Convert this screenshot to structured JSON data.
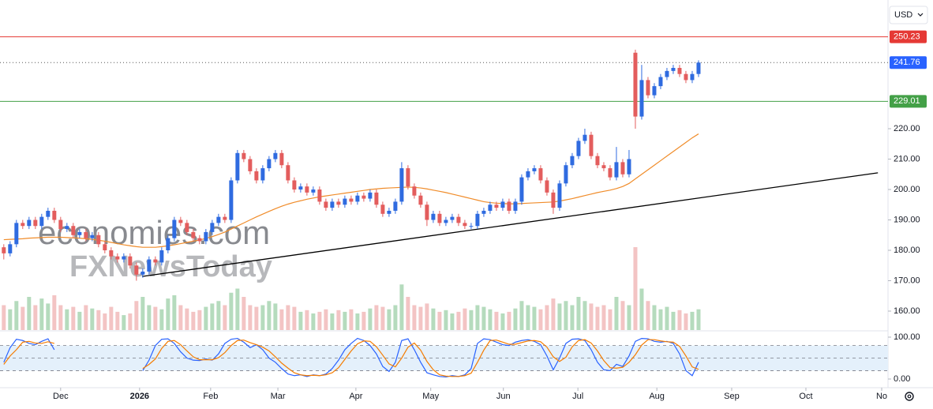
{
  "currency": "USD",
  "chart_data": {
    "type": "candlestick",
    "watermark": [
      "economies.com",
      "FXNewsToday"
    ],
    "xlim": [
      -0.6,
      140
    ],
    "xticks": [
      {
        "value": 9,
        "label": "Dec"
      },
      {
        "value": 21.5,
        "label": "2026"
      },
      {
        "value": 32.75,
        "label": "Feb"
      },
      {
        "value": 43.4,
        "label": "Mar"
      },
      {
        "value": 55.75,
        "label": "Apr"
      },
      {
        "value": 67.6,
        "label": "May"
      },
      {
        "value": 79.1,
        "label": "Jun"
      },
      {
        "value": 90.9,
        "label": "Jul"
      },
      {
        "value": 103.4,
        "label": "Aug"
      },
      {
        "value": 115.25,
        "label": "Sep"
      },
      {
        "value": 127,
        "label": "Oct"
      },
      {
        "value": 139,
        "label": "No"
      }
    ],
    "ylim": [
      153.77,
      262.34
    ],
    "yticks": [
      {
        "value": 160,
        "label": "160.00"
      },
      {
        "value": 170,
        "label": "170.00"
      },
      {
        "value": 180,
        "label": "180.00"
      },
      {
        "value": 190,
        "label": "190.00"
      },
      {
        "value": 200,
        "label": "200.00"
      },
      {
        "value": 210,
        "label": "210.00"
      },
      {
        "value": 220,
        "label": "220.00"
      }
    ],
    "up_color": "#2f6be0",
    "down_color": "#e35d5d",
    "open": [
      181,
      179,
      182,
      189,
      188,
      190,
      188,
      191,
      193,
      190,
      187,
      188,
      185,
      186,
      184,
      185,
      182,
      180,
      178,
      177,
      178,
      175,
      172,
      173,
      177,
      176,
      180,
      184,
      190,
      189,
      186,
      184,
      183,
      186,
      189,
      191,
      190,
      203,
      212,
      210,
      206,
      203,
      207,
      210,
      212,
      208,
      203,
      200,
      201,
      199,
      200,
      196,
      194,
      196,
      195,
      197,
      196,
      198,
      197,
      199,
      195,
      192,
      193,
      196,
      207,
      201,
      198,
      195,
      190,
      192,
      189,
      190,
      191,
      189,
      188,
      188,
      192,
      193,
      195,
      194,
      196,
      193,
      196,
      204,
      206,
      207,
      203,
      199,
      194,
      202,
      208,
      211,
      216,
      218,
      211,
      208,
      207,
      204,
      209,
      205,
      245,
      224,
      236,
      231,
      234,
      237,
      239,
      240,
      238,
      236,
      238
    ],
    "high": [
      182,
      183,
      190,
      190,
      191,
      191,
      192,
      194,
      194,
      191,
      189,
      189,
      187,
      187,
      186,
      186,
      183,
      181,
      179,
      179,
      179,
      176,
      174,
      178,
      178,
      181,
      185,
      191,
      191,
      190,
      187,
      185,
      187,
      190,
      192,
      192,
      204,
      213,
      213,
      211,
      207,
      208,
      211,
      213,
      213,
      209,
      204,
      202,
      202,
      201,
      201,
      197,
      197,
      197,
      198,
      198,
      199,
      199,
      200,
      200,
      196,
      194,
      197,
      209,
      208,
      202,
      199,
      196,
      193,
      193,
      191,
      192,
      192,
      190,
      189,
      193,
      194,
      196,
      196,
      197,
      197,
      197,
      205,
      207,
      208,
      208,
      204,
      200,
      203,
      209,
      212,
      217,
      220,
      219,
      212,
      209,
      208,
      214,
      210,
      213,
      246,
      241,
      237,
      235,
      238,
      240,
      241,
      241,
      239,
      239,
      242.5
    ],
    "low": [
      177,
      178,
      181,
      187,
      187,
      187,
      187,
      190,
      189,
      186,
      186,
      184,
      184,
      183,
      183,
      181,
      179,
      177,
      176,
      176,
      174,
      170,
      171,
      172,
      175,
      175,
      179,
      183,
      188,
      185,
      183,
      182,
      182,
      185,
      188,
      189,
      189,
      202,
      209,
      205,
      202,
      202,
      206,
      209,
      207,
      202,
      199,
      199,
      198,
      198,
      195,
      193,
      193,
      194,
      194,
      195,
      195,
      196,
      196,
      194,
      191,
      191,
      192,
      195,
      200,
      197,
      194,
      188,
      189,
      188,
      188,
      189,
      188,
      187,
      187,
      187,
      191,
      192,
      193,
      193,
      192,
      192,
      195,
      203,
      205,
      202,
      198,
      192,
      193,
      201,
      207,
      210,
      215,
      210,
      207,
      206,
      203,
      203,
      204,
      204,
      220,
      223,
      230,
      230,
      233,
      236,
      238,
      237,
      235,
      235,
      237
    ],
    "close": [
      179,
      182,
      189,
      188,
      190,
      188,
      191,
      193,
      190,
      187,
      188,
      185,
      186,
      184,
      185,
      182,
      180,
      178,
      177,
      178,
      175,
      172,
      173,
      177,
      176,
      180,
      184,
      190,
      189,
      186,
      184,
      183,
      186,
      189,
      191,
      190,
      203,
      212,
      210,
      206,
      203,
      207,
      210,
      212,
      208,
      203,
      200,
      201,
      199,
      200,
      196,
      194,
      196,
      195,
      197,
      196,
      198,
      197,
      199,
      195,
      192,
      193,
      196,
      207,
      201,
      198,
      195,
      190,
      192,
      189,
      190,
      191,
      189,
      188,
      188,
      192,
      193,
      195,
      194,
      196,
      193,
      196,
      204,
      206,
      207,
      203,
      199,
      194,
      202,
      208,
      211,
      216,
      218,
      211,
      208,
      207,
      204,
      209,
      205,
      210,
      224,
      236,
      231,
      234,
      237,
      239,
      240,
      238,
      236,
      238,
      241.76
    ],
    "volume_colors": {
      "up": "#b5dbbd",
      "down": "#f3c4c4"
    },
    "volume": [
      30,
      25,
      35,
      28,
      40,
      30,
      38,
      32,
      42,
      30,
      25,
      28,
      22,
      30,
      26,
      24,
      20,
      28,
      22,
      18,
      20,
      35,
      40,
      30,
      28,
      25,
      38,
      42,
      30,
      26,
      22,
      24,
      28,
      32,
      35,
      30,
      45,
      50,
      40,
      30,
      28,
      30,
      35,
      32,
      25,
      30,
      28,
      22,
      24,
      20,
      22,
      25,
      20,
      24,
      22,
      25,
      20,
      22,
      26,
      30,
      28,
      25,
      30,
      55,
      40,
      30,
      28,
      32,
      26,
      22,
      24,
      20,
      22,
      26,
      24,
      30,
      28,
      25,
      22,
      20,
      22,
      26,
      35,
      30,
      28,
      25,
      30,
      38,
      32,
      35,
      30,
      40,
      35,
      32,
      28,
      30,
      25,
      40,
      35,
      30,
      100,
      50,
      35,
      30,
      25,
      28,
      22,
      24,
      20,
      22,
      25
    ],
    "moving_average": {
      "color": "#f08c2a",
      "values": [
        183.5,
        183.6,
        183.7,
        183.8,
        184,
        184.1,
        184.2,
        184.3,
        184.3,
        184.3,
        184.2,
        184.1,
        184,
        183.8,
        183.6,
        183.3,
        183,
        182.6,
        182.2,
        181.8,
        181.5,
        181.2,
        181,
        181,
        181,
        181.2,
        181.5,
        181.8,
        182.2,
        182.6,
        183,
        183.4,
        183.9,
        184.5,
        185.2,
        186,
        187,
        188,
        189,
        190,
        191,
        191.9,
        192.8,
        193.7,
        194.5,
        195.2,
        195.8,
        196.3,
        196.8,
        197.2,
        197.6,
        197.9,
        198.2,
        198.5,
        198.8,
        199.1,
        199.4,
        199.7,
        200,
        200.2,
        200.4,
        200.5,
        200.6,
        200.7,
        200.8,
        200.7,
        200.5,
        200.2,
        199.8,
        199.4,
        199,
        198.5,
        198,
        197.5,
        197,
        196.5,
        196,
        195.7,
        195.5,
        195.4,
        195.3,
        195.3,
        195.4,
        195.5,
        195.6,
        195.7,
        195.8,
        195.9,
        196.2,
        196.6,
        197,
        197.5,
        198,
        198.5,
        199,
        199.4,
        199.8,
        200.3,
        201,
        202,
        203.5,
        205,
        206.5,
        208,
        209.5,
        211,
        212.5,
        214,
        215.5,
        217,
        218.3
      ]
    },
    "trendline": {
      "color": "#000000",
      "x": [
        21.9,
        138.4
      ],
      "y": [
        171.4,
        205.5
      ]
    },
    "levels": [
      {
        "value": 250.23,
        "color": "#e53935",
        "style": "solid"
      },
      {
        "value": 241.76,
        "color": "#2962ff",
        "style": "dotted"
      },
      {
        "value": 229.01,
        "color": "#43a047",
        "style": "solid"
      }
    ],
    "oscillator": {
      "ylim": [
        -22.6,
        113.2
      ],
      "yticks": [
        {
          "value": 100,
          "label": "100.00"
        },
        {
          "value": 0,
          "label": "0.00"
        }
      ],
      "levels": [
        80,
        50,
        20
      ],
      "band_color": "#e4f0fb",
      "series": [
        {
          "color": "#2962ff",
          "values": [
            40,
            75,
            95,
            92,
            85,
            82,
            90,
            96,
            70,
            null,
            null,
            null,
            null,
            null,
            null,
            null,
            null,
            null,
            null,
            null,
            null,
            null,
            20,
            45,
            80,
            95,
            96,
            85,
            65,
            50,
            45,
            44,
            48,
            45,
            60,
            85,
            95,
            97,
            88,
            75,
            82,
            70,
            50,
            40,
            25,
            12,
            8,
            10,
            6,
            10,
            8,
            12,
            25,
            45,
            70,
            85,
            97,
            92,
            80,
            60,
            30,
            18,
            40,
            92,
            96,
            70,
            40,
            15,
            10,
            6,
            5,
            8,
            6,
            10,
            25,
            85,
            96,
            94,
            88,
            82,
            80,
            88,
            92,
            94,
            90,
            82,
            55,
            22,
            50,
            85,
            95,
            96,
            92,
            70,
            40,
            22,
            20,
            35,
            30,
            55,
            90,
            97,
            96,
            90,
            88,
            90,
            85,
            60,
            20,
            8,
            40
          ]
        },
        {
          "color": "#f57c00",
          "values": [
            35,
            55,
            70,
            88,
            90,
            86,
            85,
            89,
            85,
            null,
            null,
            null,
            null,
            null,
            null,
            null,
            null,
            null,
            null,
            null,
            null,
            null,
            25,
            35,
            48,
            73,
            90,
            92,
            82,
            67,
            53,
            46,
            46,
            46,
            51,
            63,
            80,
            92,
            93,
            87,
            82,
            76,
            67,
            53,
            38,
            26,
            15,
            10,
            8,
            9,
            8,
            10,
            15,
            27,
            47,
            67,
            84,
            91,
            90,
            77,
            57,
            36,
            29,
            50,
            76,
            86,
            69,
            42,
            22,
            10,
            7,
            6,
            6,
            8,
            14,
            40,
            69,
            92,
            93,
            88,
            83,
            83,
            87,
            91,
            92,
            89,
            76,
            53,
            42,
            52,
            77,
            92,
            94,
            86,
            67,
            44,
            27,
            26,
            28,
            40,
            58,
            81,
            94,
            94,
            91,
            89,
            88,
            78,
            55,
            29,
            23
          ]
        }
      ]
    }
  }
}
